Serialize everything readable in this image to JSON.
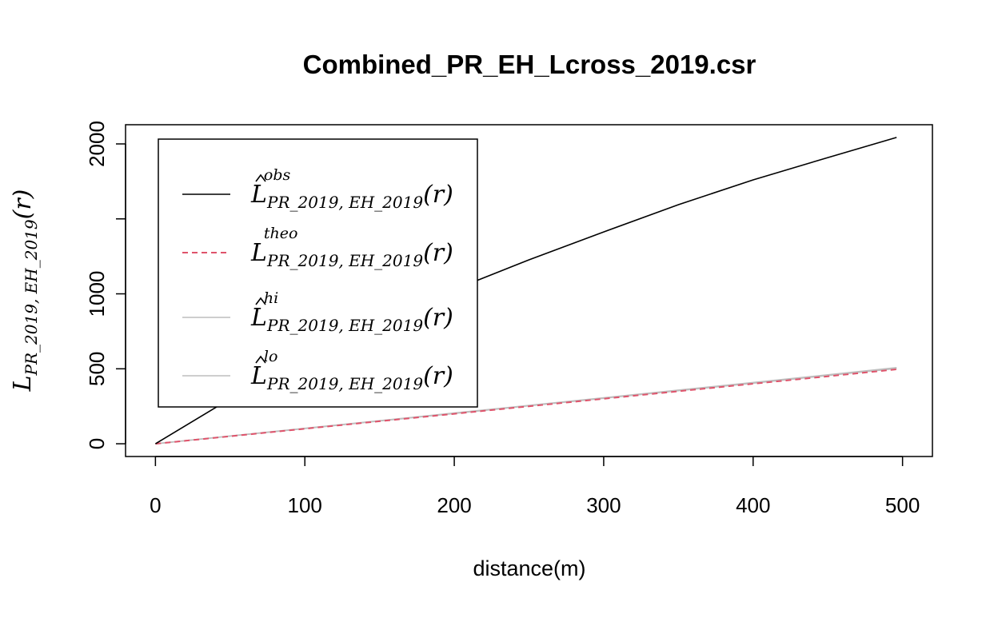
{
  "chart_data": {
    "type": "line",
    "title": "Combined_PR_EH_Lcross_2019.csr",
    "x_label": "distance(m)",
    "y_label": {
      "main": "L",
      "sub": "PR_2019, EH_2019",
      "tail": "(r)"
    },
    "x": [
      0,
      50,
      100,
      150,
      200,
      250,
      300,
      350,
      400,
      450,
      496
    ],
    "series": [
      {
        "name": "L",
        "superscript": "obs",
        "subscript": "PR_2019, EH_2019",
        "suffix": "(r)",
        "hat": true,
        "color": "#000000",
        "dash": false,
        "values": [
          0,
          300,
          587,
          827,
          1029,
          1227,
          1413,
          1595,
          1760,
          1909,
          2043
        ]
      },
      {
        "name": "L",
        "superscript": "theo",
        "subscript": "PR_2019, EH_2019",
        "suffix": "(r)",
        "hat": false,
        "color": "#DF536B",
        "dash": true,
        "values": [
          0,
          50,
          100,
          150,
          200,
          250,
          300,
          350,
          400,
          450,
          496
        ]
      },
      {
        "name": "L",
        "superscript": "hi",
        "subscript": "PR_2019, EH_2019",
        "suffix": "(r)",
        "hat": true,
        "color": "#BEBEBE",
        "dash": false,
        "values": [
          0,
          52,
          103,
          154,
          205,
          256,
          307,
          358,
          409,
          460,
          508
        ]
      },
      {
        "name": "L",
        "superscript": "lo",
        "subscript": "PR_2019, EH_2019",
        "suffix": "(r)",
        "hat": true,
        "color": "#BEBEBE",
        "dash": false,
        "values": [
          0,
          51,
          101,
          152,
          202,
          253,
          303,
          354,
          404,
          455,
          502
        ]
      }
    ],
    "xlim": [
      -20,
      520
    ],
    "ylim": [
      -85,
      2128
    ],
    "xticks": [
      0,
      100,
      200,
      300,
      400,
      500
    ],
    "yticks": [
      0,
      500,
      1000,
      {
        "value": 1500,
        "label": null
      },
      2000
    ],
    "legend": "topleft"
  }
}
